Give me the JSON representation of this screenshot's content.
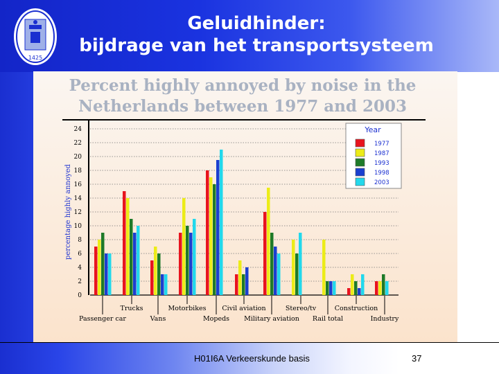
{
  "slide": {
    "title_line1": "Geluidhinder:",
    "title_line2": "bijdrage van het transportsysteem",
    "footer": "H01I6A Verkeerskunde basis",
    "page_number": "37",
    "logo_text": "1425"
  },
  "colors": {
    "accent_blue": "#1a33e0",
    "panel_bg": "#fbeee0"
  },
  "chart_data": {
    "type": "bar",
    "title_line1": "Percent highly annoyed by noise in the",
    "title_line2": "Netherlands between 1977 and 2003",
    "ylabel": "percentage highly annoyed",
    "ylim": [
      0,
      24
    ],
    "yticks": [
      0,
      2,
      4,
      6,
      8,
      10,
      12,
      14,
      16,
      18,
      20,
      22,
      24
    ],
    "grid": true,
    "legend_title": "Year",
    "legend_position": "top-right",
    "categories": [
      "Passenger car",
      "Trucks",
      "Vans",
      "Motorbikes",
      "Mopeds",
      "Civil aviation",
      "Military aviation",
      "Stereo/tv",
      "Rail total",
      "Construction",
      "Industry"
    ],
    "series": [
      {
        "name": "1977",
        "color": "#e8141e",
        "values": [
          7,
          15,
          5,
          9,
          18,
          3,
          12,
          null,
          null,
          1,
          2
        ]
      },
      {
        "name": "1987",
        "color": "#ecec18",
        "values": [
          8,
          14,
          7,
          14,
          17,
          5,
          15.5,
          8,
          8,
          3,
          2
        ]
      },
      {
        "name": "1993",
        "color": "#1e7a28",
        "values": [
          9,
          11,
          6,
          10,
          16,
          3,
          9,
          6,
          2,
          2,
          3
        ]
      },
      {
        "name": "1998",
        "color": "#1a3fd0",
        "values": [
          6,
          9,
          3,
          9,
          19.5,
          4,
          7,
          null,
          2,
          1,
          null
        ]
      },
      {
        "name": "2003",
        "color": "#22d8ec",
        "values": [
          6,
          10,
          3,
          11,
          21,
          null,
          6,
          9,
          2,
          3,
          2
        ]
      }
    ]
  }
}
